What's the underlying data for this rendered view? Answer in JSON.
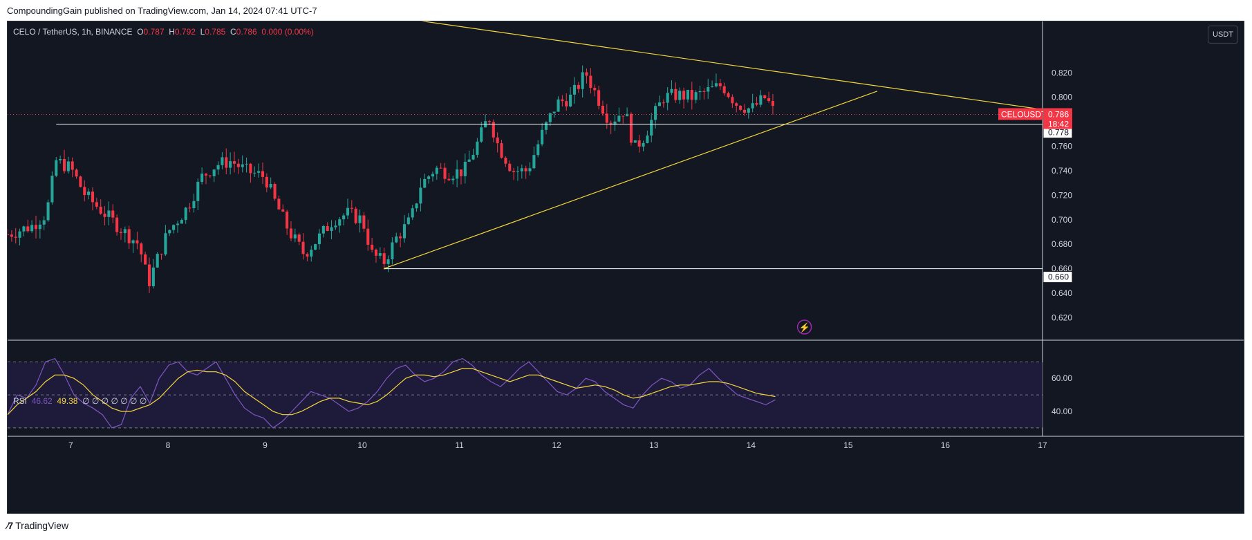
{
  "header": {
    "publisher": "CompoundingGain published on TradingView.com, Jan 14, 2024 07:41 UTC-7"
  },
  "legend": {
    "symbol": "CELO / TetherUS, 1h, BINANCE",
    "o_label": "O",
    "o": "0.787",
    "h_label": "H",
    "h": "0.792",
    "l_label": "L",
    "l": "0.785",
    "c_label": "C",
    "c": "0.786",
    "change": "0.000 (0.00%)"
  },
  "currency_button": "USDT",
  "rsi_legend": {
    "label": "RSI",
    "value": "46.62",
    "ma": "49.38",
    "extras": "∅ ∅ ∅ ∅ ∅ ∅ ∅"
  },
  "price_tag": {
    "symbol": "CELOUSDT",
    "price": "0.786",
    "countdown": "18:42"
  },
  "level_tags": [
    "0.778",
    "0.660"
  ],
  "footer": {
    "brand": "TradingView"
  },
  "colors": {
    "up": "#26a69a",
    "down": "#f23645",
    "trend": "#f5d63b",
    "rsi": "#7e57c2",
    "level": "#ffffff"
  },
  "chart_data": [
    {
      "type": "candlestick",
      "title": "CELO / TetherUS, 1h, BINANCE",
      "ylim": [
        0.605,
        0.845
      ],
      "y_ticks": [
        0.62,
        0.64,
        0.66,
        0.68,
        0.7,
        0.72,
        0.74,
        0.76,
        0.78,
        0.8,
        0.82
      ],
      "x_ticks": [
        "7",
        "8",
        "9",
        "10",
        "11",
        "12",
        "13",
        "14",
        "15",
        "16",
        "17"
      ],
      "x_range_days": [
        6.35,
        17.0
      ],
      "grid": false,
      "close_approx": [
        {
          "day": 6.35,
          "close": 0.688
        },
        {
          "day": 6.6,
          "close": 0.695
        },
        {
          "day": 6.75,
          "close": 0.705
        },
        {
          "day": 6.85,
          "close": 0.748
        },
        {
          "day": 7.0,
          "close": 0.742
        },
        {
          "day": 7.15,
          "close": 0.72
        },
        {
          "day": 7.35,
          "close": 0.705
        },
        {
          "day": 7.55,
          "close": 0.69
        },
        {
          "day": 7.7,
          "close": 0.68
        },
        {
          "day": 7.8,
          "close": 0.648
        },
        {
          "day": 7.9,
          "close": 0.67
        },
        {
          "day": 8.0,
          "close": 0.69
        },
        {
          "day": 8.2,
          "close": 0.71
        },
        {
          "day": 8.35,
          "close": 0.735
        },
        {
          "day": 8.5,
          "close": 0.745
        },
        {
          "day": 8.65,
          "close": 0.748
        },
        {
          "day": 8.8,
          "close": 0.74
        },
        {
          "day": 9.0,
          "close": 0.735
        },
        {
          "day": 9.1,
          "close": 0.715
        },
        {
          "day": 9.25,
          "close": 0.69
        },
        {
          "day": 9.4,
          "close": 0.672
        },
        {
          "day": 9.55,
          "close": 0.685
        },
        {
          "day": 9.7,
          "close": 0.7
        },
        {
          "day": 9.85,
          "close": 0.705
        },
        {
          "day": 10.0,
          "close": 0.7
        },
        {
          "day": 10.1,
          "close": 0.672
        },
        {
          "day": 10.22,
          "close": 0.665
        },
        {
          "day": 10.35,
          "close": 0.685
        },
        {
          "day": 10.5,
          "close": 0.7
        },
        {
          "day": 10.6,
          "close": 0.728
        },
        {
          "day": 10.75,
          "close": 0.742
        },
        {
          "day": 10.9,
          "close": 0.738
        },
        {
          "day": 11.05,
          "close": 0.74
        },
        {
          "day": 11.2,
          "close": 0.765
        },
        {
          "day": 11.3,
          "close": 0.785
        },
        {
          "day": 11.4,
          "close": 0.76
        },
        {
          "day": 11.55,
          "close": 0.74
        },
        {
          "day": 11.7,
          "close": 0.74
        },
        {
          "day": 11.85,
          "close": 0.77
        },
        {
          "day": 12.0,
          "close": 0.795
        },
        {
          "day": 12.15,
          "close": 0.8
        },
        {
          "day": 12.3,
          "close": 0.82
        },
        {
          "day": 12.42,
          "close": 0.8
        },
        {
          "day": 12.55,
          "close": 0.78
        },
        {
          "day": 12.7,
          "close": 0.79
        },
        {
          "day": 12.8,
          "close": 0.758
        },
        {
          "day": 12.9,
          "close": 0.768
        },
        {
          "day": 13.0,
          "close": 0.785
        },
        {
          "day": 13.1,
          "close": 0.8
        },
        {
          "day": 13.25,
          "close": 0.802
        },
        {
          "day": 13.4,
          "close": 0.8
        },
        {
          "day": 13.55,
          "close": 0.805
        },
        {
          "day": 13.7,
          "close": 0.81
        },
        {
          "day": 13.85,
          "close": 0.795
        },
        {
          "day": 14.0,
          "close": 0.79
        },
        {
          "day": 14.15,
          "close": 0.8
        },
        {
          "day": 14.25,
          "close": 0.786
        }
      ],
      "horizontal_levels": [
        {
          "value": 0.778,
          "from_day": 6.85
        },
        {
          "value": 0.66,
          "from_day": 10.22
        }
      ],
      "trendlines": [
        {
          "from": {
            "day": 8.6,
            "price": 0.885
          },
          "to": {
            "day": 17.0,
            "price": 0.79
          }
        },
        {
          "from": {
            "day": 10.22,
            "price": 0.66
          },
          "to": {
            "day": 15.3,
            "price": 0.805
          }
        }
      ]
    },
    {
      "type": "line",
      "title": "RSI",
      "ylim": [
        27,
        76
      ],
      "y_ticks": [
        40.0,
        60.0
      ],
      "bands": [
        30,
        50,
        70
      ],
      "series": [
        {
          "name": "RSI",
          "values": [
            38,
            50,
            48,
            56,
            70,
            72,
            62,
            50,
            45,
            42,
            38,
            30,
            32,
            48,
            55,
            45,
            60,
            68,
            70,
            64,
            62,
            66,
            70,
            60,
            50,
            42,
            38,
            36,
            30,
            34,
            40,
            46,
            52,
            50,
            48,
            44,
            40,
            42,
            46,
            52,
            60,
            66,
            68,
            62,
            58,
            60,
            64,
            70,
            72,
            68,
            62,
            58,
            55,
            60,
            66,
            70,
            64,
            58,
            52,
            50,
            54,
            60,
            58,
            52,
            48,
            44,
            42,
            50,
            56,
            60,
            58,
            54,
            56,
            62,
            66,
            60,
            55,
            50,
            48,
            46,
            44,
            47
          ]
        },
        {
          "name": "RSI-based MA",
          "values": [
            38,
            44,
            48,
            52,
            58,
            62,
            62,
            60,
            56,
            50,
            46,
            42,
            40,
            40,
            42,
            44,
            48,
            54,
            60,
            64,
            65,
            64,
            64,
            62,
            58,
            52,
            48,
            44,
            40,
            38,
            38,
            40,
            43,
            46,
            48,
            48,
            46,
            45,
            44,
            46,
            50,
            55,
            60,
            62,
            62,
            61,
            62,
            64,
            66,
            66,
            64,
            62,
            60,
            58,
            60,
            62,
            62,
            60,
            58,
            56,
            54,
            55,
            56,
            55,
            53,
            50,
            48,
            49,
            51,
            53,
            55,
            56,
            56,
            57,
            58,
            58,
            57,
            55,
            53,
            51,
            50,
            49
          ]
        }
      ]
    }
  ]
}
